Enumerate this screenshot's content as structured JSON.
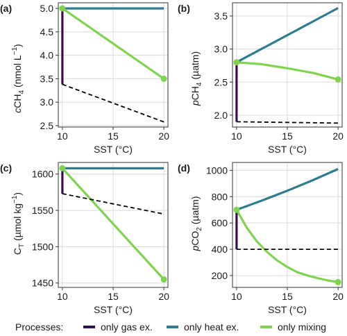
{
  "colors": {
    "gas": "#3b0f4f",
    "heat": "#2f7b8f",
    "mixing": "#7fd34e",
    "dashed": "#000000",
    "grid": "#d9d9d9",
    "panel_border": "#333333"
  },
  "legend": {
    "title": "Processes:",
    "items": [
      {
        "label": "only gas ex.",
        "color": "#3b0f4f"
      },
      {
        "label": "only heat ex.",
        "color": "#2f7b8f"
      },
      {
        "label": "only mixing",
        "color": "#7fd34e"
      }
    ]
  },
  "chart_data": [
    {
      "panel": "(a)",
      "type": "line",
      "xlabel": "SST (°C)",
      "ylabel": "cCH4 (nmol L-1)",
      "xlim": [
        9.6,
        20.4
      ],
      "ylim": [
        2.47,
        5.12
      ],
      "xticks": [
        10,
        15,
        20
      ],
      "yticks": [
        2.5,
        3.0,
        3.5,
        4.0,
        4.5,
        5.0
      ],
      "yticklabels": [
        "2.5",
        "3.0",
        "3.5",
        "4.0",
        "4.5",
        "5.0"
      ],
      "series": [
        {
          "name": "only gas ex.",
          "x": [
            10,
            10
          ],
          "y": [
            5.0,
            3.38
          ]
        },
        {
          "name": "only heat ex.",
          "x": [
            10,
            20
          ],
          "y": [
            5.0,
            5.0
          ]
        },
        {
          "name": "only mixing",
          "x": [
            10,
            20
          ],
          "y": [
            5.0,
            3.5
          ],
          "markers": true
        },
        {
          "x": [
            10,
            20
          ],
          "y": [
            3.38,
            2.58
          ],
          "dashed": true
        }
      ]
    },
    {
      "panel": "(b)",
      "type": "line",
      "xlabel": "SST (°C)",
      "ylabel": "pCH4 (µatm)",
      "xlim": [
        9.6,
        20.4
      ],
      "ylim": [
        1.82,
        3.7
      ],
      "xticks": [
        10,
        15,
        20
      ],
      "yticks": [
        2.0,
        2.5,
        3.0,
        3.5
      ],
      "yticklabels": [
        "2.0",
        "2.5",
        "3.0",
        "3.5"
      ],
      "series": [
        {
          "name": "only gas ex.",
          "x": [
            10,
            10
          ],
          "y": [
            2.8,
            1.9
          ]
        },
        {
          "name": "only heat ex.",
          "x": [
            10,
            20
          ],
          "y": [
            2.8,
            3.62
          ]
        },
        {
          "name": "only mixing",
          "x": [
            10,
            12.5,
            15,
            17.5,
            20
          ],
          "y": [
            2.8,
            2.77,
            2.71,
            2.64,
            2.54
          ],
          "markers": true
        },
        {
          "x": [
            10,
            20
          ],
          "y": [
            1.9,
            1.88
          ],
          "dashed": true
        }
      ]
    },
    {
      "panel": "(c)",
      "type": "line",
      "xlabel": "SST (°C)",
      "ylabel": "CT (µmol kg-1)",
      "xlim": [
        9.6,
        20.4
      ],
      "ylim": [
        1444,
        1616
      ],
      "xticks": [
        10,
        15,
        20
      ],
      "yticks": [
        1450,
        1500,
        1550,
        1600
      ],
      "yticklabels": [
        "1450",
        "1500",
        "1550",
        "1600"
      ],
      "series": [
        {
          "name": "only gas ex.",
          "x": [
            10,
            10
          ],
          "y": [
            1608,
            1573
          ]
        },
        {
          "name": "only heat ex.",
          "x": [
            10,
            20
          ],
          "y": [
            1608,
            1608
          ]
        },
        {
          "name": "only mixing",
          "x": [
            10,
            20
          ],
          "y": [
            1608,
            1455
          ],
          "markers": true
        },
        {
          "x": [
            10,
            20
          ],
          "y": [
            1573,
            1545
          ],
          "dashed": true
        }
      ]
    },
    {
      "panel": "(d)",
      "type": "line",
      "xlabel": "SST (°C)",
      "ylabel": "pCO2 (µatm)",
      "xlim": [
        9.6,
        20.4
      ],
      "ylim": [
        110,
        1060
      ],
      "xticks": [
        10,
        15,
        20
      ],
      "yticks": [
        200,
        400,
        600,
        800,
        1000
      ],
      "yticklabels": [
        "200",
        "400",
        "600",
        "800",
        "1000"
      ],
      "series": [
        {
          "name": "only gas ex.",
          "x": [
            10,
            10
          ],
          "y": [
            700,
            400
          ]
        },
        {
          "name": "only heat ex.",
          "x": [
            10,
            12.5,
            15,
            17.5,
            20
          ],
          "y": [
            700,
            770,
            845,
            925,
            1010
          ]
        },
        {
          "name": "only mixing",
          "x": [
            10,
            11,
            12,
            13,
            14,
            15,
            16,
            17,
            18,
            19,
            20
          ],
          "y": [
            700,
            565,
            460,
            380,
            315,
            265,
            225,
            200,
            180,
            163,
            150
          ],
          "markers": true
        },
        {
          "x": [
            10,
            20
          ],
          "y": [
            400,
            400
          ],
          "dashed": true
        }
      ]
    }
  ]
}
